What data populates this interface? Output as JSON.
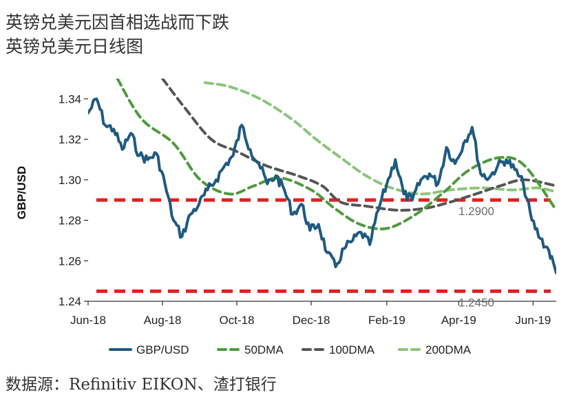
{
  "header": {
    "title": "英镑兑美元因首相选战而下跌",
    "subtitle": "英镑兑美元日线图"
  },
  "footer": {
    "source": "数据源：Refinitiv EIKON、渣打银行"
  },
  "colors": {
    "gbpusd": "#1f5a80",
    "dma50": "#4e9a3c",
    "dma100": "#555555",
    "dma200": "#8cc47c",
    "reference": "#e02020"
  },
  "chart_data": {
    "type": "line",
    "ylabel": "GBP/USD",
    "xlabel": "",
    "ylim": [
      1.24,
      1.35
    ],
    "yticks": [
      1.24,
      1.26,
      1.28,
      1.3,
      1.32,
      1.34
    ],
    "ytick_labels": [
      "1.24",
      "1.26",
      "1.28",
      "1.30",
      "1.32",
      "1.34"
    ],
    "xticks": [
      "2018-06-01",
      "2018-08-01",
      "2018-10-01",
      "2018-12-01",
      "2019-02-01",
      "2019-04-01",
      "2019-06-01"
    ],
    "xtick_labels": [
      "Jun-18",
      "Aug-18",
      "Oct-18",
      "Dec-18",
      "Feb-19",
      "Apr-19",
      "Jun-19"
    ],
    "xlim": [
      "2018-06-01",
      "2019-06-20"
    ],
    "legend_position": "bottom",
    "reference_lines": [
      {
        "value": 1.29,
        "label": "1.2900"
      },
      {
        "value": 1.245,
        "label": "1.2450"
      }
    ],
    "series": [
      {
        "name": "GBP/USD",
        "x": [
          "2018-06-01",
          "2018-06-08",
          "2018-06-15",
          "2018-06-22",
          "2018-06-29",
          "2018-07-06",
          "2018-07-13",
          "2018-07-20",
          "2018-07-27",
          "2018-08-03",
          "2018-08-10",
          "2018-08-17",
          "2018-08-24",
          "2018-08-31",
          "2018-09-07",
          "2018-09-14",
          "2018-09-21",
          "2018-09-28",
          "2018-10-05",
          "2018-10-12",
          "2018-10-19",
          "2018-10-26",
          "2018-11-02",
          "2018-11-09",
          "2018-11-16",
          "2018-11-23",
          "2018-11-30",
          "2018-12-07",
          "2018-12-14",
          "2018-12-21",
          "2018-12-28",
          "2019-01-04",
          "2019-01-11",
          "2019-01-18",
          "2019-01-25",
          "2019-02-01",
          "2019-02-08",
          "2019-02-15",
          "2019-02-22",
          "2019-03-01",
          "2019-03-08",
          "2019-03-15",
          "2019-03-22",
          "2019-03-29",
          "2019-04-05",
          "2019-04-12",
          "2019-04-19",
          "2019-04-26",
          "2019-05-03",
          "2019-05-10",
          "2019-05-17",
          "2019-05-24",
          "2019-05-31",
          "2019-06-07",
          "2019-06-14",
          "2019-06-20"
        ],
        "values": [
          1.333,
          1.34,
          1.327,
          1.325,
          1.315,
          1.323,
          1.312,
          1.31,
          1.313,
          1.298,
          1.28,
          1.272,
          1.283,
          1.288,
          1.295,
          1.3,
          1.307,
          1.312,
          1.327,
          1.315,
          1.308,
          1.298,
          1.302,
          1.295,
          1.283,
          1.288,
          1.275,
          1.278,
          1.264,
          1.257,
          1.266,
          1.27,
          1.274,
          1.268,
          1.285,
          1.298,
          1.31,
          1.293,
          1.29,
          1.3,
          1.303,
          1.298,
          1.316,
          1.308,
          1.318,
          1.326,
          1.303,
          1.301,
          1.307,
          1.31,
          1.305,
          1.298,
          1.28,
          1.271,
          1.265,
          1.254
        ]
      },
      {
        "name": "50DMA",
        "x": [
          "2018-06-25",
          "2018-07-15",
          "2018-08-10",
          "2018-09-01",
          "2018-09-25",
          "2018-10-15",
          "2018-11-05",
          "2018-12-01",
          "2018-12-20",
          "2019-01-10",
          "2019-02-01",
          "2019-02-25",
          "2019-03-20",
          "2019-04-10",
          "2019-05-05",
          "2019-05-25",
          "2019-06-20"
        ],
        "values": [
          1.35,
          1.33,
          1.318,
          1.3,
          1.293,
          1.297,
          1.301,
          1.295,
          1.286,
          1.278,
          1.276,
          1.283,
          1.294,
          1.305,
          1.311,
          1.307,
          1.285
        ]
      },
      {
        "name": "100DMA",
        "x": [
          "2018-08-01",
          "2018-08-20",
          "2018-09-10",
          "2018-10-01",
          "2018-10-25",
          "2018-11-20",
          "2018-12-10",
          "2018-12-25",
          "2019-01-15",
          "2019-02-10",
          "2019-03-05",
          "2019-03-25",
          "2019-04-15",
          "2019-05-05",
          "2019-05-25",
          "2019-06-20"
        ],
        "values": [
          1.35,
          1.335,
          1.32,
          1.314,
          1.307,
          1.302,
          1.297,
          1.289,
          1.287,
          1.285,
          1.286,
          1.289,
          1.293,
          1.297,
          1.3,
          1.297
        ]
      },
      {
        "name": "200DMA",
        "x": [
          "2018-09-05",
          "2018-09-25",
          "2018-10-20",
          "2018-11-15",
          "2018-12-05",
          "2018-12-25",
          "2019-01-15",
          "2019-02-05",
          "2019-03-01",
          "2019-03-25",
          "2019-04-20",
          "2019-05-15",
          "2019-06-05",
          "2019-06-20"
        ],
        "values": [
          1.348,
          1.346,
          1.34,
          1.33,
          1.32,
          1.311,
          1.302,
          1.296,
          1.293,
          1.295,
          1.296,
          1.295,
          1.296,
          1.294
        ]
      }
    ]
  }
}
